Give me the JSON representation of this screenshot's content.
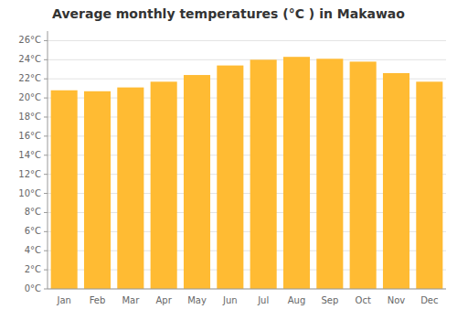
{
  "chart_data": {
    "type": "bar",
    "title": "Average monthly temperatures (°C ) in Makawao",
    "categories": [
      "Jan",
      "Feb",
      "Mar",
      "Apr",
      "May",
      "Jun",
      "Jul",
      "Aug",
      "Sep",
      "Oct",
      "Nov",
      "Dec"
    ],
    "values": [
      20.8,
      20.7,
      21.1,
      21.7,
      22.4,
      23.4,
      24.0,
      24.3,
      24.1,
      23.8,
      22.6,
      21.7
    ],
    "color": "#FFBB33",
    "ylim": [
      0,
      27
    ],
    "yticks": [
      {
        "value": 0,
        "label": "0°C"
      },
      {
        "value": 2,
        "label": "2°C"
      },
      {
        "value": 4,
        "label": "4°C"
      },
      {
        "value": 6,
        "label": "6°C"
      },
      {
        "value": 8,
        "label": "8°C"
      },
      {
        "value": 10,
        "label": "10°C"
      },
      {
        "value": 12,
        "label": "12°C"
      },
      {
        "value": 14,
        "label": "14°C"
      },
      {
        "value": 16,
        "label": "16°C"
      },
      {
        "value": 18,
        "label": "18°C"
      },
      {
        "value": 20,
        "label": "20°C"
      },
      {
        "value": 22,
        "label": "22°C"
      },
      {
        "value": 24,
        "label": "24°C"
      },
      {
        "value": 26,
        "label": "26°C"
      }
    ],
    "grid": true
  }
}
